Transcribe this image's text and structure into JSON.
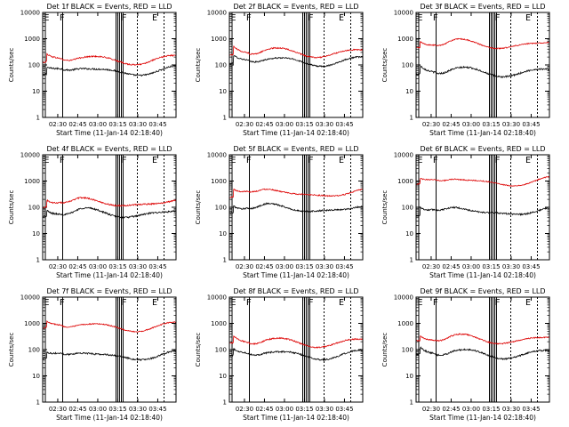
{
  "chart_data": [
    {
      "type": "line",
      "title": "Det 1f BLACK = Events, RED = LLD",
      "ylabel": "Counts/sec",
      "xlabel": "Start Time (11-Jan-14 02:18:40)",
      "yscale": "log",
      "ylim": [
        1,
        10000
      ],
      "x_range_minutes": [
        0,
        100
      ],
      "x_ticks": [
        "02:30",
        "02:45",
        "03:00",
        "03:15",
        "03:30",
        "03:45"
      ],
      "y_ticks": [
        "1",
        "10",
        "100",
        "1000",
        "10000"
      ],
      "markers": [
        "E",
        "F",
        "F",
        "E"
      ],
      "series": [
        {
          "name": "Events",
          "color": "#000000",
          "level": 60
        },
        {
          "name": "LLD",
          "color": "#dd0000",
          "level": 160
        }
      ]
    },
    {
      "type": "line",
      "title": "Det 2f BLACK = Events, RED = LLD",
      "ylabel": "Counts/sec",
      "xlabel": "Start Time (11-Jan-14 02:18:40)",
      "yscale": "log",
      "ylim": [
        1,
        10000
      ],
      "x_range_minutes": [
        0,
        100
      ],
      "x_ticks": [
        "02:30",
        "02:45",
        "03:00",
        "03:15",
        "03:30",
        "03:45"
      ],
      "y_ticks": [
        "1",
        "10",
        "100",
        "1000",
        "10000"
      ],
      "markers": [
        "E",
        "F",
        "F",
        "E"
      ],
      "series": [
        {
          "name": "Events",
          "color": "#000000",
          "level": 140
        },
        {
          "name": "LLD",
          "color": "#dd0000",
          "level": 300
        }
      ]
    },
    {
      "type": "line",
      "title": "Det 3f BLACK = Events, RED = LLD",
      "ylabel": "Counts/sec",
      "xlabel": "Start Time (11-Jan-14 02:18:40)",
      "yscale": "log",
      "ylim": [
        1,
        10000
      ],
      "x_range_minutes": [
        0,
        100
      ],
      "x_ticks": [
        "02:30",
        "02:45",
        "03:00",
        "03:15",
        "03:30",
        "03:45"
      ],
      "y_ticks": [
        "1",
        "10",
        "100",
        "1000",
        "10000"
      ],
      "markers": [
        "E",
        "F",
        "F",
        "E"
      ],
      "series": [
        {
          "name": "Events",
          "color": "#000000",
          "level": 55
        },
        {
          "name": "LLD",
          "color": "#dd0000",
          "level": 620
        }
      ]
    },
    {
      "type": "line",
      "title": "Det 4f BLACK = Events, RED = LLD",
      "ylabel": "Counts/sec",
      "xlabel": "Start Time (11-Jan-14 02:18:40)",
      "yscale": "log",
      "ylim": [
        1,
        10000
      ],
      "x_range_minutes": [
        0,
        100
      ],
      "x_ticks": [
        "02:30",
        "02:45",
        "03:00",
        "03:15",
        "03:30",
        "03:45"
      ],
      "y_ticks": [
        "1",
        "10",
        "100",
        "1000",
        "10000"
      ],
      "markers": [
        "E",
        "F",
        "F",
        "E"
      ],
      "series": [
        {
          "name": "Events",
          "color": "#000000",
          "level": 60
        },
        {
          "name": "LLD",
          "color": "#dd0000",
          "level": 150
        }
      ]
    },
    {
      "type": "line",
      "title": "Det 5f BLACK = Events, RED = LLD",
      "ylabel": "Counts/sec",
      "xlabel": "Start Time (11-Jan-14 02:18:40)",
      "yscale": "log",
      "ylim": [
        1,
        10000
      ],
      "x_range_minutes": [
        0,
        100
      ],
      "x_ticks": [
        "02:30",
        "02:45",
        "03:00",
        "03:15",
        "03:30",
        "03:45"
      ],
      "y_ticks": [
        "1",
        "10",
        "100",
        "1000",
        "10000"
      ],
      "markers": [
        "E",
        "F",
        "F",
        "E"
      ],
      "series": [
        {
          "name": "Events",
          "color": "#000000",
          "level": 90
        },
        {
          "name": "LLD",
          "color": "#dd0000",
          "level": 350
        }
      ]
    },
    {
      "type": "line",
      "title": "Det 6f BLACK = Events, RED = LLD",
      "ylabel": "Counts/sec",
      "xlabel": "Start Time (11-Jan-14 02:18:40)",
      "yscale": "log",
      "ylim": [
        1,
        10000
      ],
      "x_range_minutes": [
        0,
        100
      ],
      "x_ticks": [
        "02:30",
        "02:45",
        "03:00",
        "03:15",
        "03:30",
        "03:45"
      ],
      "y_ticks": [
        "1",
        "10",
        "100",
        "1000",
        "10000"
      ],
      "markers": [
        "E",
        "F",
        "F",
        "E"
      ],
      "series": [
        {
          "name": "Events",
          "color": "#000000",
          "level": 70
        },
        {
          "name": "LLD",
          "color": "#dd0000",
          "level": 950
        }
      ]
    },
    {
      "type": "line",
      "title": "Det 7f BLACK = Events, RED = LLD",
      "ylabel": "Counts/sec",
      "xlabel": "Start Time (11-Jan-14 02:18:40)",
      "yscale": "log",
      "ylim": [
        1,
        10000
      ],
      "x_range_minutes": [
        0,
        100
      ],
      "x_ticks": [
        "02:30",
        "02:45",
        "03:00",
        "03:15",
        "03:30",
        "03:45"
      ],
      "y_ticks": [
        "1",
        "10",
        "100",
        "1000",
        "10000"
      ],
      "markers": [
        "E",
        "F",
        "F",
        "E"
      ],
      "series": [
        {
          "name": "Events",
          "color": "#000000",
          "level": 60
        },
        {
          "name": "LLD",
          "color": "#dd0000",
          "level": 750
        }
      ]
    },
    {
      "type": "line",
      "title": "Det 8f BLACK = Events, RED = LLD",
      "ylabel": "Counts/sec",
      "xlabel": "Start Time (11-Jan-14 02:18:40)",
      "yscale": "log",
      "ylim": [
        1,
        10000
      ],
      "x_range_minutes": [
        0,
        100
      ],
      "x_ticks": [
        "02:30",
        "02:45",
        "03:00",
        "03:15",
        "03:30",
        "03:45"
      ],
      "y_ticks": [
        "1",
        "10",
        "100",
        "1000",
        "10000"
      ],
      "markers": [
        "E",
        "F",
        "F",
        "E"
      ],
      "series": [
        {
          "name": "Events",
          "color": "#000000",
          "level": 65
        },
        {
          "name": "LLD",
          "color": "#dd0000",
          "level": 190
        }
      ]
    },
    {
      "type": "line",
      "title": "Det 9f BLACK = Events, RED = LLD",
      "ylabel": "Counts/sec",
      "xlabel": "Start Time (11-Jan-14 02:18:40)",
      "yscale": "log",
      "ylim": [
        1,
        10000
      ],
      "x_range_minutes": [
        0,
        100
      ],
      "x_ticks": [
        "02:30",
        "02:45",
        "03:00",
        "03:15",
        "03:30",
        "03:45"
      ],
      "y_ticks": [
        "1",
        "10",
        "100",
        "1000",
        "10000"
      ],
      "markers": [
        "E",
        "F",
        "F",
        "E"
      ],
      "series": [
        {
          "name": "Events",
          "color": "#000000",
          "level": 70
        },
        {
          "name": "LLD",
          "color": "#dd0000",
          "level": 250
        }
      ]
    }
  ]
}
